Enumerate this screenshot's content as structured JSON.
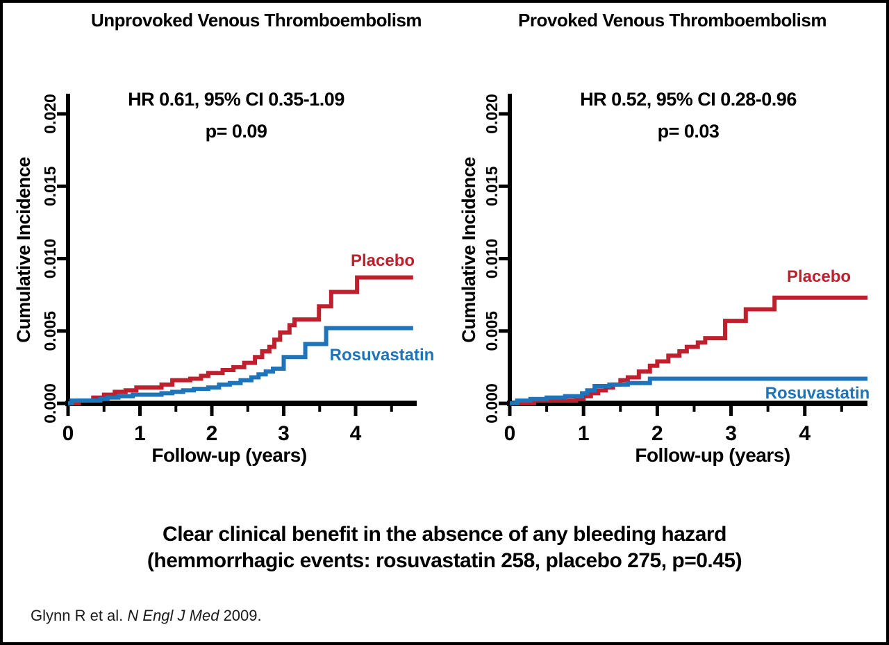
{
  "conclusion": {
    "line1": "Clear clinical benefit in the absence of any bleeding hazard",
    "line2": "(hemmorrhagic events: rosuvastatin 258, placebo 275, p=0.45)"
  },
  "citation": {
    "prefix": "Glynn R et al. ",
    "journal_italic": "N Engl J Med",
    "suffix": " 2009."
  },
  "colors": {
    "placebo": "#be202e",
    "rosuvastatin": "#1f74b9",
    "axis": "#000000",
    "text": "#000000"
  },
  "chart_data": [
    {
      "type": "line",
      "subtype": "cumulative-incidence-step",
      "title": "Unprovoked Venous Thromboembolism",
      "annotation_hr": "HR 0.61, 95% CI 0.35-1.09",
      "annotation_p": "p= 0.09",
      "xlabel": "Follow-up (years)",
      "ylabel": "Cumulative Incidence",
      "xlim": [
        0,
        4.85
      ],
      "ylim": [
        0,
        0.02
      ],
      "x_ticks": [
        0,
        1,
        2,
        3,
        4
      ],
      "x_minor_ticks": [
        0.5,
        1.5,
        2.5,
        3.5,
        4.5
      ],
      "y_ticks": [
        0,
        0.005,
        0.01,
        0.015,
        0.02
      ],
      "y_tick_labels": [
        "0.000",
        "0.005",
        "0.010",
        "0.015",
        "0.020"
      ],
      "grid": false,
      "legend_position": "inline-labels",
      "series": [
        {
          "name": "Placebo",
          "color": "#be202e",
          "steps": [
            [
              0,
              0
            ],
            [
              0.15,
              0.0002
            ],
            [
              0.35,
              0.0004
            ],
            [
              0.5,
              0.0006
            ],
            [
              0.65,
              0.0008
            ],
            [
              0.8,
              0.0009
            ],
            [
              0.95,
              0.0011
            ],
            [
              1.3,
              0.0013
            ],
            [
              1.45,
              0.0016
            ],
            [
              1.7,
              0.0017
            ],
            [
              1.85,
              0.0019
            ],
            [
              1.95,
              0.0021
            ],
            [
              2.15,
              0.0023
            ],
            [
              2.3,
              0.0025
            ],
            [
              2.45,
              0.0028
            ],
            [
              2.6,
              0.0032
            ],
            [
              2.7,
              0.0036
            ],
            [
              2.8,
              0.0039
            ],
            [
              2.87,
              0.0044
            ],
            [
              2.95,
              0.0049
            ],
            [
              3.08,
              0.0054
            ],
            [
              3.15,
              0.0058
            ],
            [
              3.49,
              0.0067
            ],
            [
              3.66,
              0.0077
            ],
            [
              4.02,
              0.0087
            ],
            [
              4.8,
              0.0087
            ]
          ]
        },
        {
          "name": "Rosuvastatin",
          "color": "#1f74b9",
          "steps": [
            [
              0,
              0
            ],
            [
              0.05,
              0.0002
            ],
            [
              0.45,
              0.0003
            ],
            [
              0.55,
              0.0004
            ],
            [
              0.7,
              0.0005
            ],
            [
              0.9,
              0.0006
            ],
            [
              1.3,
              0.0007
            ],
            [
              1.45,
              0.0008
            ],
            [
              1.6,
              0.0009
            ],
            [
              1.75,
              0.001
            ],
            [
              1.95,
              0.0011
            ],
            [
              2.1,
              0.0013
            ],
            [
              2.25,
              0.0014
            ],
            [
              2.4,
              0.0016
            ],
            [
              2.55,
              0.0018
            ],
            [
              2.65,
              0.002
            ],
            [
              2.75,
              0.0022
            ],
            [
              2.85,
              0.0024
            ],
            [
              3.0,
              0.0032
            ],
            [
              3.3,
              0.0041
            ],
            [
              3.59,
              0.0052
            ],
            [
              4.8,
              0.0052
            ]
          ]
        }
      ]
    },
    {
      "type": "line",
      "subtype": "cumulative-incidence-step",
      "title": "Provoked Venous Thromboembolism",
      "annotation_hr": "HR 0.52, 95% CI 0.28-0.96",
      "annotation_p": "p= 0.03",
      "xlabel": "Follow-up (years)",
      "ylabel": "Cumulative Incidence",
      "xlim": [
        0,
        4.85
      ],
      "ylim": [
        0,
        0.02
      ],
      "x_ticks": [
        0,
        1,
        2,
        3,
        4
      ],
      "x_minor_ticks": [
        0.5,
        1.5,
        2.5,
        3.5,
        4.5
      ],
      "y_ticks": [
        0,
        0.005,
        0.01,
        0.015,
        0.02
      ],
      "y_tick_labels": [
        "0.000",
        "0.005",
        "0.010",
        "0.015",
        "0.020"
      ],
      "grid": false,
      "legend_position": "inline-labels",
      "series": [
        {
          "name": "Placebo",
          "color": "#be202e",
          "steps": [
            [
              0,
              0
            ],
            [
              0.33,
              0.0002
            ],
            [
              0.9,
              0.0003
            ],
            [
              1.0,
              0.0005
            ],
            [
              1.1,
              0.0007
            ],
            [
              1.2,
              0.0009
            ],
            [
              1.3,
              0.0011
            ],
            [
              1.4,
              0.0013
            ],
            [
              1.5,
              0.0016
            ],
            [
              1.6,
              0.0018
            ],
            [
              1.75,
              0.0022
            ],
            [
              1.9,
              0.0026
            ],
            [
              2.0,
              0.0029
            ],
            [
              2.15,
              0.0033
            ],
            [
              2.3,
              0.0036
            ],
            [
              2.4,
              0.0039
            ],
            [
              2.55,
              0.0042
            ],
            [
              2.65,
              0.0045
            ],
            [
              2.92,
              0.0057
            ],
            [
              3.2,
              0.0065
            ],
            [
              3.59,
              0.0073
            ],
            [
              4.85,
              0.0073
            ]
          ]
        },
        {
          "name": "Rosuvastatin",
          "color": "#1f74b9",
          "steps": [
            [
              0,
              0
            ],
            [
              0.1,
              0.0002
            ],
            [
              0.28,
              0.0003
            ],
            [
              0.5,
              0.0004
            ],
            [
              0.75,
              0.0005
            ],
            [
              0.98,
              0.0007
            ],
            [
              1.05,
              0.0009
            ],
            [
              1.15,
              0.0012
            ],
            [
              1.35,
              0.0013
            ],
            [
              1.6,
              0.0014
            ],
            [
              1.9,
              0.0017
            ],
            [
              4.85,
              0.0017
            ]
          ]
        }
      ]
    }
  ]
}
